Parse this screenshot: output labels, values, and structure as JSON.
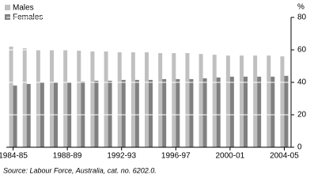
{
  "chart_data": {
    "type": "bar",
    "y_axis_label": "%",
    "source": "Source: Labour Force, Australia, cat. no. 6202.0.",
    "categories": [
      "1984-85",
      null,
      null,
      null,
      "1988-89",
      null,
      null,
      null,
      "1992-93",
      null,
      null,
      null,
      "1996-97",
      null,
      null,
      null,
      "2000-01",
      null,
      null,
      null,
      "2004-05"
    ],
    "series": [
      {
        "name": "Males",
        "color": "#c0c0c0",
        "values": [
          62,
          61,
          60,
          60,
          60,
          59.5,
          59,
          59,
          58.5,
          58.5,
          58.5,
          58,
          58,
          58,
          57.5,
          57,
          56.5,
          56.5,
          56.5,
          56.5,
          56
        ]
      },
      {
        "name": "Females",
        "color": "#808080",
        "values": [
          38,
          39,
          40,
          40,
          40,
          40.5,
          41,
          41,
          41.5,
          41.5,
          41.5,
          42,
          42,
          42,
          42.5,
          43,
          43.5,
          43.5,
          43.5,
          43.5,
          44
        ]
      }
    ],
    "ylim": [
      0,
      80
    ],
    "yticks": [
      0,
      20,
      40,
      60,
      80
    ],
    "grid": true
  }
}
